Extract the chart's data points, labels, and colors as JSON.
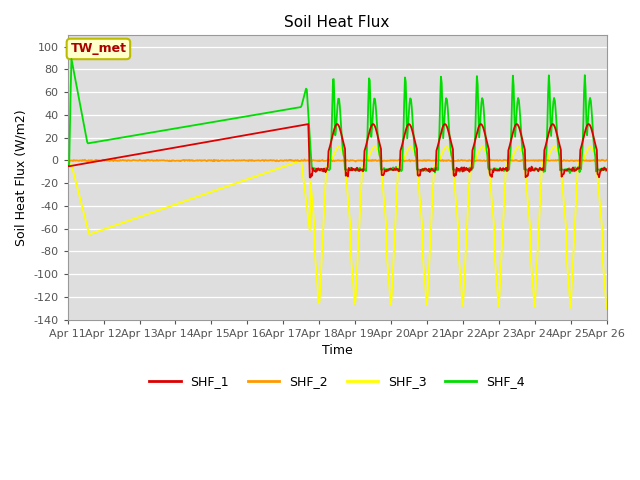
{
  "title": "Soil Heat Flux",
  "xlabel": "Time",
  "ylabel": "Soil Heat Flux (W/m2)",
  "ylim": [
    -140,
    110
  ],
  "yticks": [
    -140,
    -120,
    -100,
    -80,
    -60,
    -40,
    -20,
    0,
    20,
    40,
    60,
    80,
    100
  ],
  "colors": {
    "SHF_1": "#dd0000",
    "SHF_2": "#ff9900",
    "SHF_3": "#ffff00",
    "SHF_4": "#00dd00"
  },
  "bg_color": "#dedede",
  "grid_color": "#ffffff",
  "annotation_text": "TW_met",
  "annotation_color": "#aa0000",
  "annotation_bg": "#ffffcc",
  "annotation_edge": "#bbbb00",
  "linewidth": 1.3,
  "legend_fontsize": 9,
  "title_fontsize": 11,
  "tick_fontsize": 8,
  "axis_label_fontsize": 9
}
